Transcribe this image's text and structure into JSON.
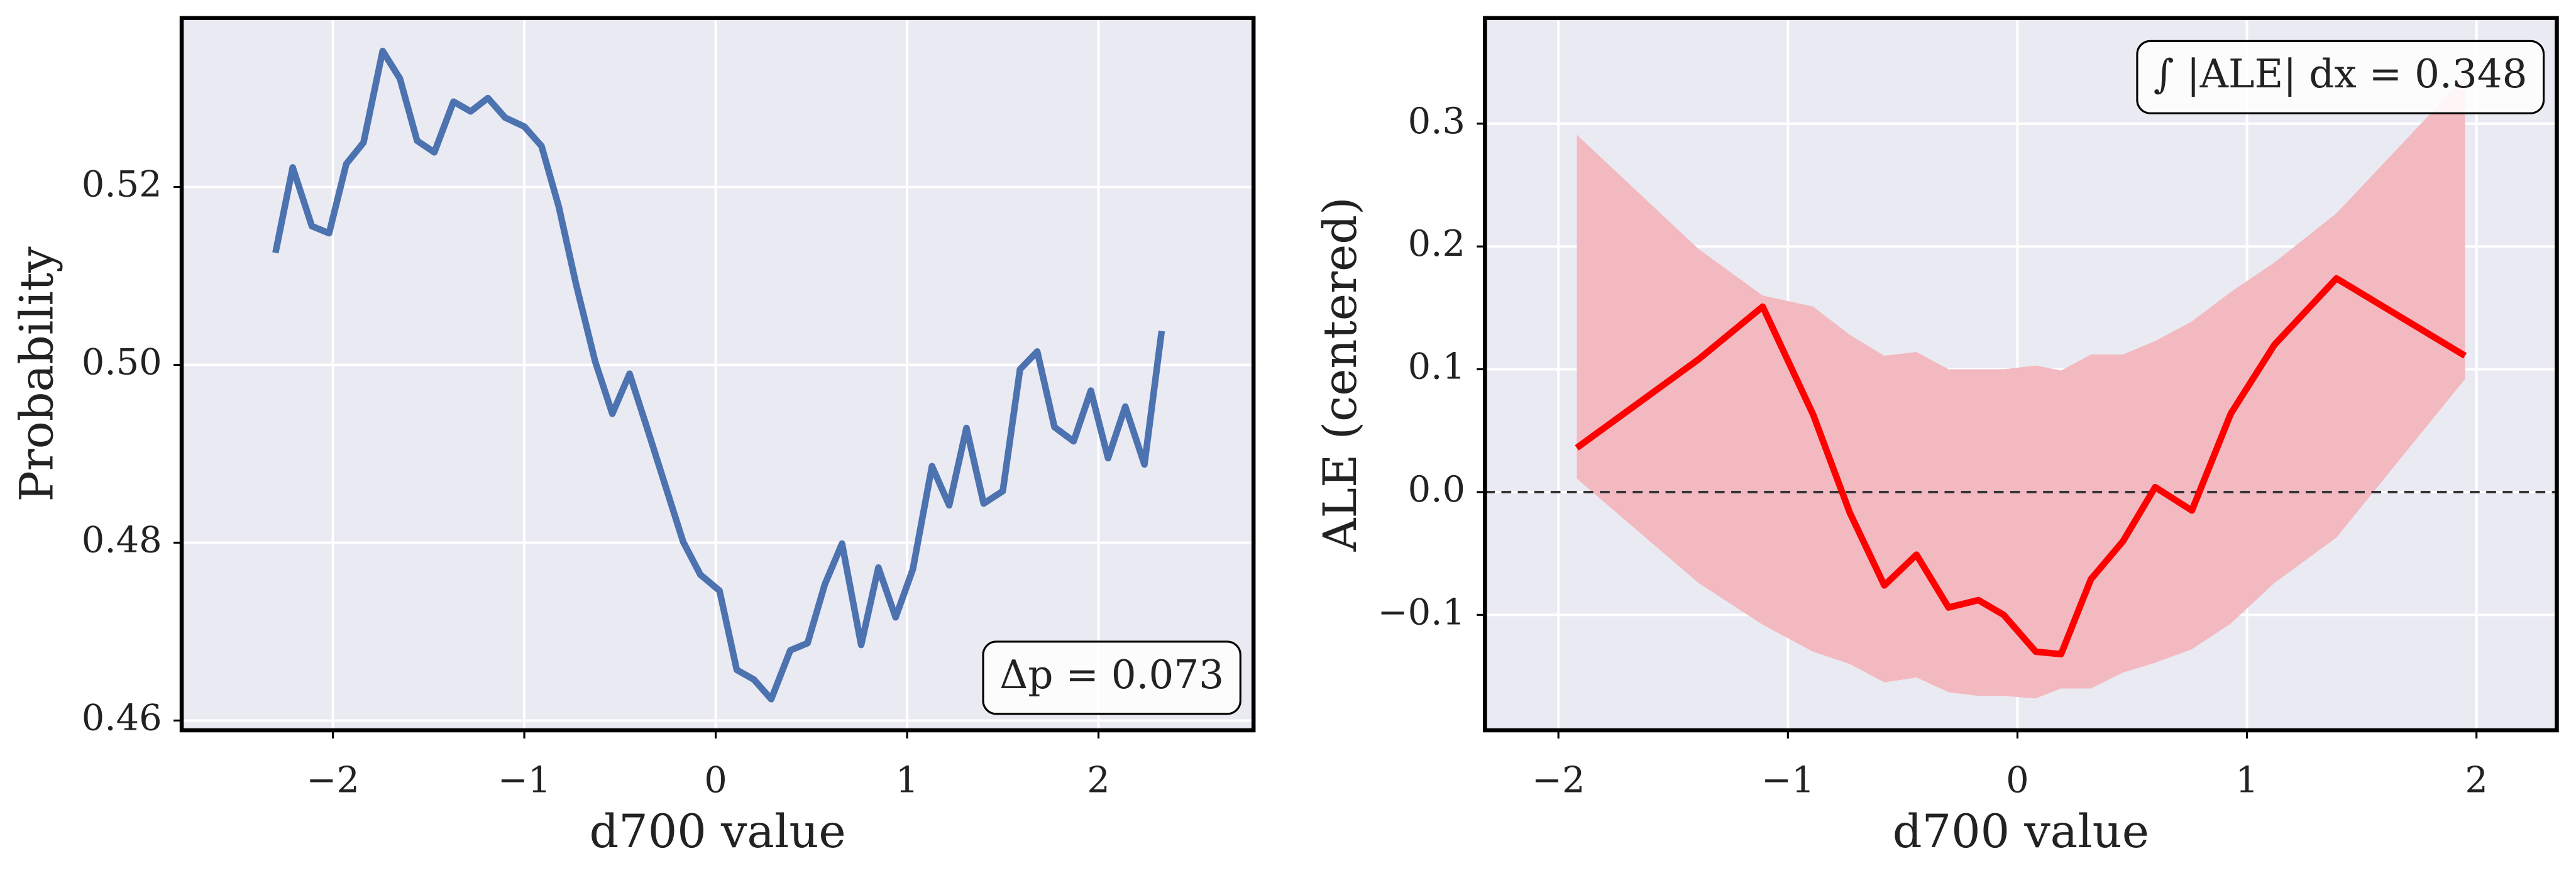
{
  "chart_data": [
    {
      "type": "line",
      "xlabel": "d700 value",
      "ylabel": "Probability",
      "color": "#4c72b0",
      "grid": true,
      "annotation": "Δp = 0.073",
      "annotation_loc": "lower right",
      "x": [
        -2.3,
        -2.21,
        -2.11,
        -2.02,
        -1.93,
        -1.84,
        -1.74,
        -1.65,
        -1.56,
        -1.47,
        -1.37,
        -1.28,
        -1.19,
        -1.1,
        -1.0,
        -0.91,
        -0.82,
        -0.73,
        -0.63,
        -0.54,
        -0.45,
        -0.36,
        -0.26,
        -0.17,
        -0.08,
        0.02,
        0.11,
        0.2,
        0.29,
        0.39,
        0.48,
        0.57,
        0.66,
        0.76,
        0.85,
        0.94,
        1.03,
        1.13,
        1.22,
        1.31,
        1.4,
        1.5,
        1.59,
        1.68,
        1.77,
        1.87,
        1.96,
        2.05,
        2.14,
        2.24,
        2.33
      ],
      "values": [
        0.5126,
        0.5222,
        0.5156,
        0.5148,
        0.5226,
        0.525,
        0.5353,
        0.5322,
        0.5252,
        0.5239,
        0.5296,
        0.5285,
        0.53,
        0.5278,
        0.5268,
        0.5246,
        0.5178,
        0.5091,
        0.5004,
        0.4945,
        0.499,
        0.493,
        0.4862,
        0.4801,
        0.4764,
        0.4746,
        0.4657,
        0.4646,
        0.4624,
        0.4679,
        0.4687,
        0.4753,
        0.4799,
        0.4685,
        0.4772,
        0.4716,
        0.477,
        0.4886,
        0.4842,
        0.4929,
        0.4844,
        0.4858,
        0.4995,
        0.5015,
        0.493,
        0.4914,
        0.4971,
        0.4895,
        0.4953,
        0.4888,
        0.5038
      ],
      "xlim": [
        -2.79,
        2.81
      ],
      "xticks": [
        {
          "value": -2,
          "label": "−2"
        },
        {
          "value": -1,
          "label": "−1"
        },
        0,
        1,
        2
      ],
      "ylim": [
        0.4589,
        0.539
      ],
      "yticks": [
        0.46,
        0.48,
        {
          "value": 0.5,
          "label": "0.50"
        },
        0.52
      ]
    },
    {
      "type": "line",
      "xlabel": "d700 value",
      "ylabel": "ALE (centered)",
      "color": "#ff0000",
      "grid": true,
      "annotation": "∫ |ALE| dx = 0.348",
      "annotation_loc": "upper right",
      "band_color": "#f2b9c1",
      "hline": 0,
      "x": [
        -1.92,
        -1.39,
        -1.11,
        -0.89,
        -0.73,
        -0.58,
        -0.44,
        -0.3,
        -0.17,
        -0.06,
        0.08,
        0.19,
        0.32,
        0.46,
        0.6,
        0.76,
        0.93,
        1.12,
        1.39,
        1.95
      ],
      "values": [
        0.036,
        0.108,
        0.151,
        0.063,
        -0.017,
        -0.076,
        -0.051,
        -0.094,
        -0.088,
        -0.1,
        -0.13,
        -0.132,
        -0.071,
        -0.04,
        0.004,
        -0.015,
        0.064,
        0.12,
        0.174,
        0.111
      ],
      "band": {
        "upper": [
          0.291,
          0.198,
          0.16,
          0.151,
          0.128,
          0.111,
          0.114,
          0.1,
          0.1,
          0.1,
          0.103,
          0.099,
          0.112,
          0.112,
          0.123,
          0.139,
          0.163,
          0.187,
          0.227,
          0.338
        ],
        "lower": [
          0.011,
          -0.074,
          -0.108,
          -0.13,
          -0.14,
          -0.155,
          -0.151,
          -0.163,
          -0.166,
          -0.166,
          -0.168,
          -0.16,
          -0.16,
          -0.147,
          -0.139,
          -0.128,
          -0.107,
          -0.074,
          -0.037,
          0.092
        ]
      },
      "xlim": [
        -2.32,
        2.35
      ],
      "xticks": [
        {
          "value": -2,
          "label": "−2"
        },
        {
          "value": -1,
          "label": "−1"
        },
        0,
        1,
        2
      ],
      "ylim": [
        -0.194,
        0.386
      ],
      "yticks": [
        {
          "value": -0.1,
          "label": "−0.1"
        },
        {
          "value": 0,
          "label": "0.0"
        },
        0.1,
        0.2,
        0.3
      ]
    }
  ]
}
